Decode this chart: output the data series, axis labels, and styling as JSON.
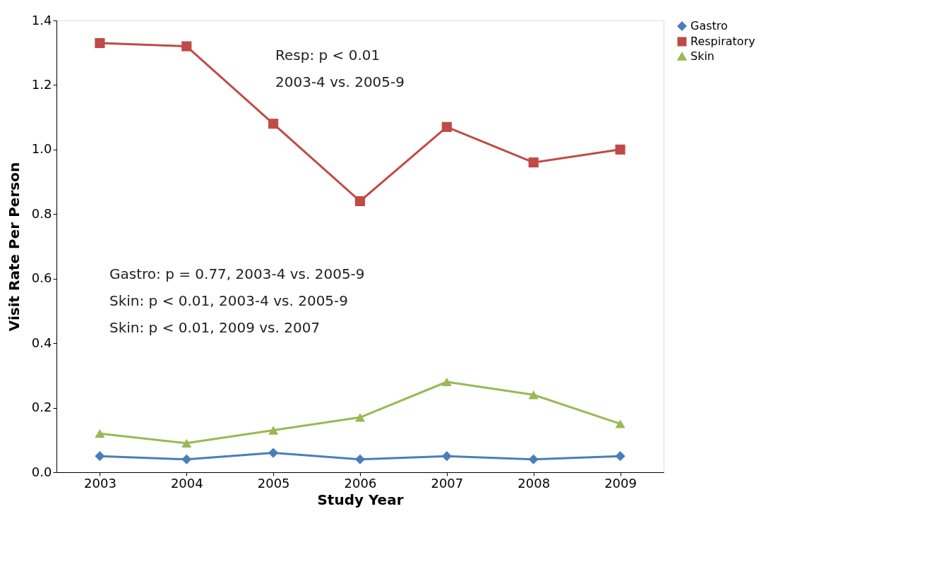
{
  "chart_data": {
    "type": "line",
    "xlabel": "Study Year",
    "ylabel": "Visit Rate Per Person",
    "categories": [
      "2003",
      "2004",
      "2005",
      "2006",
      "2007",
      "2008",
      "2009"
    ],
    "series": [
      {
        "name": "Gastro",
        "color": "#4a7ebb",
        "marker": "diamond",
        "values": [
          0.05,
          0.04,
          0.06,
          0.04,
          0.05,
          0.04,
          0.05
        ]
      },
      {
        "name": "Respiratory",
        "color": "#be4b48",
        "marker": "square",
        "values": [
          1.33,
          1.32,
          1.08,
          0.84,
          1.07,
          0.96,
          1.0
        ]
      },
      {
        "name": "Skin",
        "color": "#98b954",
        "marker": "triangle",
        "values": [
          0.12,
          0.09,
          0.13,
          0.17,
          0.28,
          0.24,
          0.15
        ]
      }
    ],
    "ylim": [
      0,
      1.4
    ],
    "yticks": [
      {
        "value": 0,
        "label": "0.0"
      },
      0.2,
      0.4,
      0.6,
      0.8,
      {
        "value": 1,
        "label": "1.0"
      },
      1.2,
      1.4
    ],
    "annotations": [
      "Resp:  p < 0.01",
      "2003-4 vs. 2005-9",
      "Gastro: p = 0.77, 2003-4 vs. 2005-9",
      "Skin: p < 0.01, 2003-4 vs. 2005-9",
      "Skin: p < 0.01, 2009 vs. 2007"
    ],
    "grid": false,
    "legend": "right",
    "line_style": "solid"
  }
}
